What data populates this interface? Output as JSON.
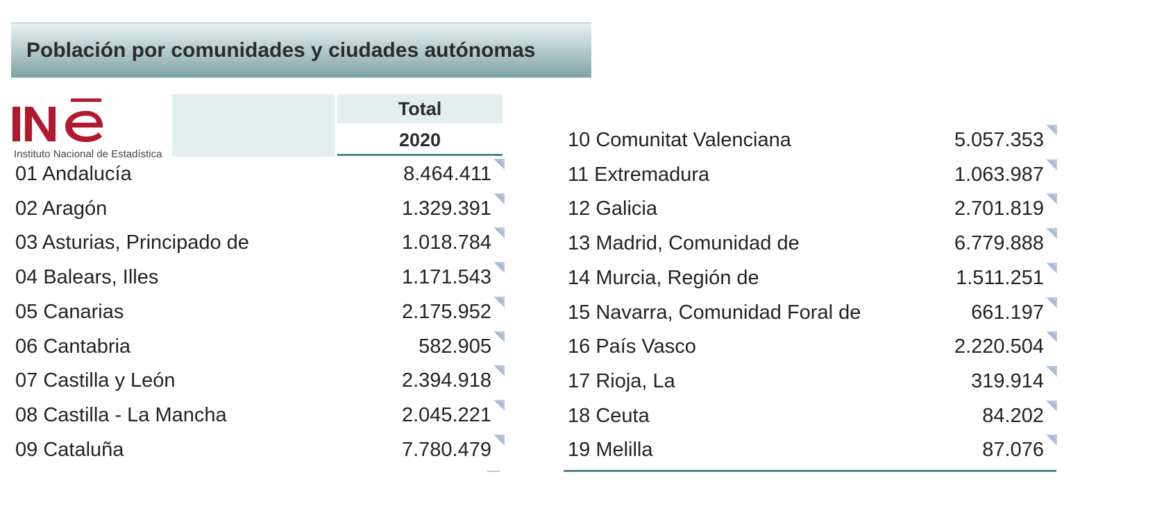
{
  "title": "Población por comunidades y ciudades autónomas",
  "logo": {
    "wordmark": "INE",
    "caption": "Instituto Nacional de Estadística",
    "color": "#b0192e"
  },
  "header": {
    "total_label": "Total",
    "year_label": "2020"
  },
  "table": {
    "left_rows": [
      {
        "label": "01 Andalucía",
        "value": "8.464.411"
      },
      {
        "label": "02 Aragón",
        "value": "1.329.391"
      },
      {
        "label": "03 Asturias, Principado de",
        "value": "1.018.784"
      },
      {
        "label": "04 Balears, Illes",
        "value": "1.171.543"
      },
      {
        "label": "05 Canarias",
        "value": "2.175.952"
      },
      {
        "label": "06 Cantabria",
        "value": "582.905"
      },
      {
        "label": "07 Castilla y León",
        "value": "2.394.918"
      },
      {
        "label": "08 Castilla - La Mancha",
        "value": "2.045.221"
      },
      {
        "label": "09 Cataluña",
        "value": "7.780.479"
      }
    ],
    "right_rows": [
      {
        "label": "10 Comunitat Valenciana",
        "value": "5.057.353"
      },
      {
        "label": "11 Extremadura",
        "value": "1.063.987"
      },
      {
        "label": "12 Galicia",
        "value": "2.701.819"
      },
      {
        "label": "13 Madrid, Comunidad de",
        "value": "6.779.888"
      },
      {
        "label": "14 Murcia, Región de",
        "value": "1.511.251"
      },
      {
        "label": "15 Navarra, Comunidad Foral de",
        "value": "661.197"
      },
      {
        "label": "16 País Vasco",
        "value": "2.220.504"
      },
      {
        "label": "17 Rioja, La",
        "value": "319.914"
      },
      {
        "label": "18 Ceuta",
        "value": "84.202"
      },
      {
        "label": "19 Melilla",
        "value": "87.076"
      }
    ]
  },
  "colors": {
    "header_fill": "#e2efee",
    "rule": "#4f8383",
    "note_icon": "#b8c8e0"
  }
}
